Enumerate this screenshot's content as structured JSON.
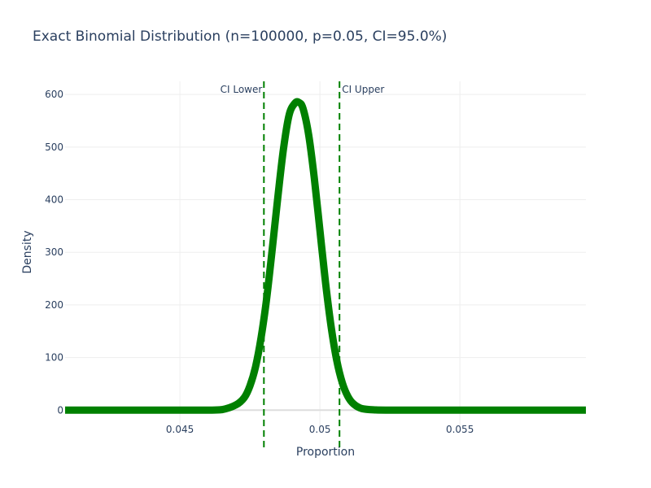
{
  "chart_data": {
    "type": "line",
    "title": "Exact Binomial Distribution (n=100000, p=0.05, CI=95.0%)",
    "xlabel": "Proportion",
    "ylabel": "Density",
    "xlim": [
      0.0409,
      0.0595
    ],
    "ylim": [
      -32,
      625
    ],
    "x_ticks": [
      0.045,
      0.05,
      0.055
    ],
    "x_tick_labels": [
      "0.045",
      "0.05",
      "0.055"
    ],
    "y_ticks": [
      0,
      100,
      200,
      300,
      400,
      500,
      600
    ],
    "y_tick_labels": [
      "0",
      "100",
      "200",
      "300",
      "400",
      "500",
      "600"
    ],
    "grid": true,
    "series": [
      {
        "color": "#008000",
        "x": [
          0.0409,
          0.043,
          0.045,
          0.046,
          0.0465,
          0.047,
          0.0473,
          0.0475,
          0.0477,
          0.0479,
          0.0481,
          0.0483,
          0.0485,
          0.0487,
          0.0489,
          0.0491,
          0.04925,
          0.0494,
          0.0496,
          0.0498,
          0.05,
          0.0502,
          0.0504,
          0.0506,
          0.0508,
          0.051,
          0.0512,
          0.0515,
          0.052,
          0.0525,
          0.053,
          0.055,
          0.0595
        ],
        "y": [
          0,
          0,
          0,
          0.1,
          1,
          10,
          24,
          46,
          82,
          138,
          213,
          307,
          406,
          497,
          561,
          583,
          585,
          573,
          523,
          441,
          342,
          243,
          159,
          95,
          52,
          26,
          12,
          3,
          0.4,
          0.1,
          0,
          0,
          0
        ]
      }
    ],
    "vlines": [
      {
        "x": 0.048,
        "label": "CI Lower",
        "color": "#008000",
        "label_side": "left"
      },
      {
        "x": 0.0507,
        "label": "CI Upper",
        "color": "#008000",
        "label_side": "right"
      }
    ]
  }
}
